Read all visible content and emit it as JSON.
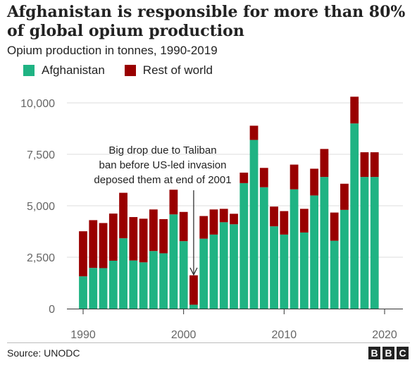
{
  "title": "Afghanistan is responsible for more than 80% of global opium production",
  "subtitle": "Opium production in tonnes, 1990-2019",
  "legend": [
    {
      "label": "Afghanistan",
      "color": "#1fb383"
    },
    {
      "label": "Rest of world",
      "color": "#990000"
    }
  ],
  "annotation": {
    "lines": [
      "Big drop due to Taliban",
      "ban before US-led invasion",
      "deposed them at end of 2001"
    ],
    "year": 2001
  },
  "footer": {
    "source": "Source: UNODC",
    "logo_letters": [
      "B",
      "B",
      "C"
    ]
  },
  "chart_data": {
    "type": "bar",
    "stacked": true,
    "title": "Afghanistan is responsible for more than 80% of global opium production",
    "subtitle": "Opium production in tonnes, 1990-2019",
    "xlabel": "",
    "ylabel": "",
    "x": [
      1990,
      1991,
      1992,
      1993,
      1994,
      1995,
      1996,
      1997,
      1998,
      1999,
      2000,
      2001,
      2002,
      2003,
      2004,
      2005,
      2006,
      2007,
      2008,
      2009,
      2010,
      2011,
      2012,
      2013,
      2014,
      2015,
      2016,
      2017,
      2018,
      2019
    ],
    "xlim": [
      1989,
      2021
    ],
    "xticks": [
      1990,
      2000,
      2010,
      2020
    ],
    "ylim": [
      0,
      10500
    ],
    "yticks": [
      0,
      2500,
      5000,
      7500,
      10000
    ],
    "ytick_labels": [
      "0",
      "2,500",
      "5,000",
      "7,500",
      "10,000"
    ],
    "grid": true,
    "legend_position": "top-left",
    "series": [
      {
        "name": "Afghanistan",
        "color": "#1fb383",
        "values": [
          1570,
          1980,
          1970,
          2330,
          3420,
          2340,
          2250,
          2800,
          2690,
          4580,
          3280,
          190,
          3400,
          3600,
          4200,
          4100,
          6100,
          8200,
          5900,
          4000,
          3600,
          5800,
          3700,
          5500,
          6400,
          3300,
          4800,
          9000,
          6400,
          6400
        ]
      },
      {
        "name": "Rest of world",
        "color": "#990000",
        "values": [
          2190,
          2320,
          2190,
          2290,
          2210,
          2110,
          2120,
          2020,
          1660,
          1200,
          1420,
          1430,
          1100,
          1220,
          650,
          510,
          510,
          690,
          940,
          960,
          1140,
          1200,
          1150,
          1300,
          1360,
          1370,
          1270,
          1300,
          1200,
          1200
        ]
      }
    ]
  }
}
